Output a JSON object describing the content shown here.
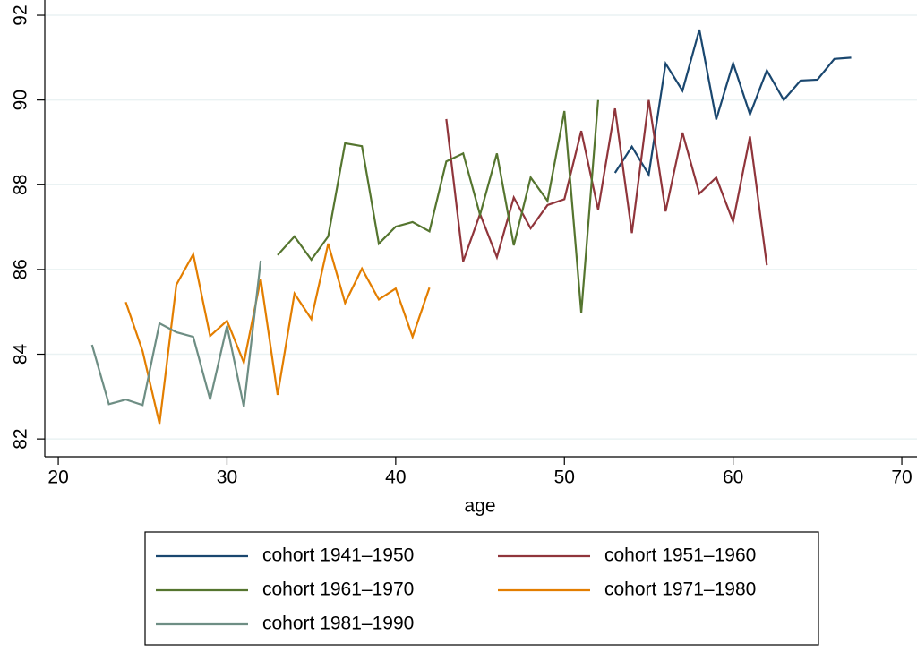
{
  "chart_data": {
    "type": "line",
    "x_label": "age",
    "xlim": [
      19.2,
      70.9
    ],
    "ylim": [
      81.58,
      92.36
    ],
    "xticks": [
      20,
      30,
      40,
      50,
      60,
      70
    ],
    "yticks": [
      82,
      84,
      86,
      88,
      90,
      92
    ],
    "grid": true,
    "series": [
      {
        "name": "cohort 1941–1950",
        "color": "#1a476f",
        "x": [
          53,
          54,
          55,
          56,
          57,
          58,
          59,
          60,
          61,
          62,
          63,
          64,
          65,
          66,
          67
        ],
        "values": [
          88.28,
          88.9,
          88.24,
          90.86,
          90.22,
          91.66,
          89.54,
          90.87,
          89.66,
          90.7,
          90.0,
          90.46,
          90.48,
          90.97,
          91.0
        ]
      },
      {
        "name": "cohort 1951–1960",
        "color": "#90353b",
        "x": [
          43,
          44,
          45,
          46,
          47,
          48,
          49,
          50,
          51,
          52,
          53,
          54,
          55,
          56,
          57,
          58,
          59,
          60,
          61,
          62
        ],
        "values": [
          89.55,
          86.19,
          87.31,
          86.29,
          87.7,
          86.97,
          87.52,
          87.66,
          89.27,
          87.41,
          89.8,
          86.86,
          90.0,
          87.37,
          89.23,
          87.79,
          88.17,
          87.13,
          89.14,
          86.1
        ]
      },
      {
        "name": "cohort 1961–1970",
        "color": "#55752f",
        "x": [
          33,
          34,
          35,
          36,
          37,
          38,
          39,
          40,
          41,
          42,
          43,
          44,
          45,
          46,
          47,
          48,
          49,
          50,
          51,
          52
        ],
        "values": [
          86.34,
          86.78,
          86.23,
          86.78,
          88.98,
          88.91,
          86.61,
          87.01,
          87.12,
          86.9,
          88.55,
          88.74,
          87.29,
          88.74,
          86.57,
          88.17,
          87.62,
          89.74,
          84.98,
          90.0
        ]
      },
      {
        "name": "cohort 1971–1980",
        "color": "#e37e00",
        "x": [
          24,
          25,
          26,
          27,
          28,
          29,
          30,
          31,
          32,
          33,
          34,
          35,
          36,
          37,
          38,
          39,
          40,
          41,
          42
        ],
        "values": [
          85.23,
          84.07,
          82.36,
          85.64,
          86.36,
          84.43,
          84.79,
          83.8,
          85.78,
          83.04,
          85.43,
          84.83,
          86.61,
          85.21,
          86.02,
          85.29,
          85.55,
          84.41,
          85.57
        ]
      },
      {
        "name": "cohort 1981–1990",
        "color": "#6e8e84",
        "x": [
          22,
          23,
          24,
          25,
          26,
          27,
          28,
          29,
          30,
          31,
          32
        ],
        "values": [
          84.22,
          82.82,
          82.93,
          82.8,
          84.73,
          84.52,
          84.41,
          82.93,
          84.67,
          82.76,
          86.21
        ]
      }
    ]
  }
}
